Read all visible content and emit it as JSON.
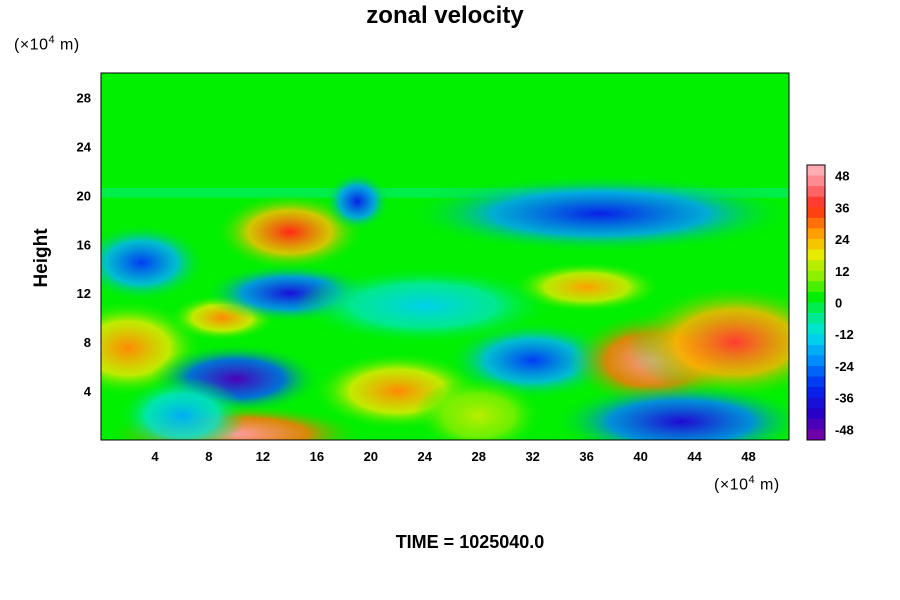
{
  "chart_data": {
    "type": "heatmap",
    "title": "zonal velocity",
    "ylabel": "Height",
    "xlabel": "",
    "y_unit": {
      "prefix": "(×10",
      "exponent": "4",
      "suffix": " m)"
    },
    "x_unit": {
      "prefix": "(×10",
      "exponent": "4",
      "suffix": " m)"
    },
    "x_ticks": [
      4,
      8,
      12,
      16,
      20,
      24,
      28,
      32,
      36,
      40,
      44,
      48
    ],
    "y_ticks": [
      4,
      8,
      12,
      16,
      20,
      24,
      28
    ],
    "xlim": [
      0,
      51
    ],
    "ylim": [
      0,
      30
    ],
    "colorbar": {
      "ticks": [
        48,
        36,
        24,
        12,
        0,
        -12,
        -24,
        -36,
        -48
      ],
      "range": [
        -52,
        52
      ]
    },
    "background_value": 2,
    "features": [
      {
        "x": 2,
        "y": 7.5,
        "value": 28,
        "rx": 3.5,
        "ry": 2.5
      },
      {
        "x": 10,
        "y": 5,
        "value": -46,
        "rx": 4,
        "ry": 1.8
      },
      {
        "x": 14,
        "y": 17,
        "value": 36,
        "rx": 3.5,
        "ry": 2
      },
      {
        "x": 9,
        "y": 10,
        "value": 28,
        "rx": 2.5,
        "ry": 1.2
      },
      {
        "x": 14,
        "y": 12,
        "value": -38,
        "rx": 4,
        "ry": 1.5
      },
      {
        "x": 10,
        "y": 0.5,
        "value": 48,
        "rx": 6,
        "ry": 1.5
      },
      {
        "x": 3,
        "y": 14.5,
        "value": -30,
        "rx": 3,
        "ry": 2
      },
      {
        "x": 22,
        "y": 4,
        "value": 28,
        "rx": 4,
        "ry": 2
      },
      {
        "x": 32,
        "y": 6.5,
        "value": -30,
        "rx": 4,
        "ry": 2
      },
      {
        "x": 19,
        "y": 19.5,
        "value": -34,
        "rx": 1.5,
        "ry": 1.5
      },
      {
        "x": 37,
        "y": 18.5,
        "value": -34,
        "rx": 9,
        "ry": 2
      },
      {
        "x": 36,
        "y": 12.5,
        "value": 26,
        "rx": 3.5,
        "ry": 1.3
      },
      {
        "x": 41,
        "y": 6.5,
        "value": 48,
        "rx": 4,
        "ry": 2.5
      },
      {
        "x": 47,
        "y": 8,
        "value": 38,
        "rx": 5,
        "ry": 3
      },
      {
        "x": 43,
        "y": 1.5,
        "value": -40,
        "rx": 6,
        "ry": 2
      },
      {
        "x": 28,
        "y": 2,
        "value": 14,
        "rx": 3,
        "ry": 2
      },
      {
        "x": 24,
        "y": 11,
        "value": -14,
        "rx": 6,
        "ry": 2
      },
      {
        "x": 6,
        "y": 2,
        "value": -18,
        "rx": 3,
        "ry": 2
      }
    ]
  },
  "footer": {
    "time": "TIME = 1025040.0"
  }
}
